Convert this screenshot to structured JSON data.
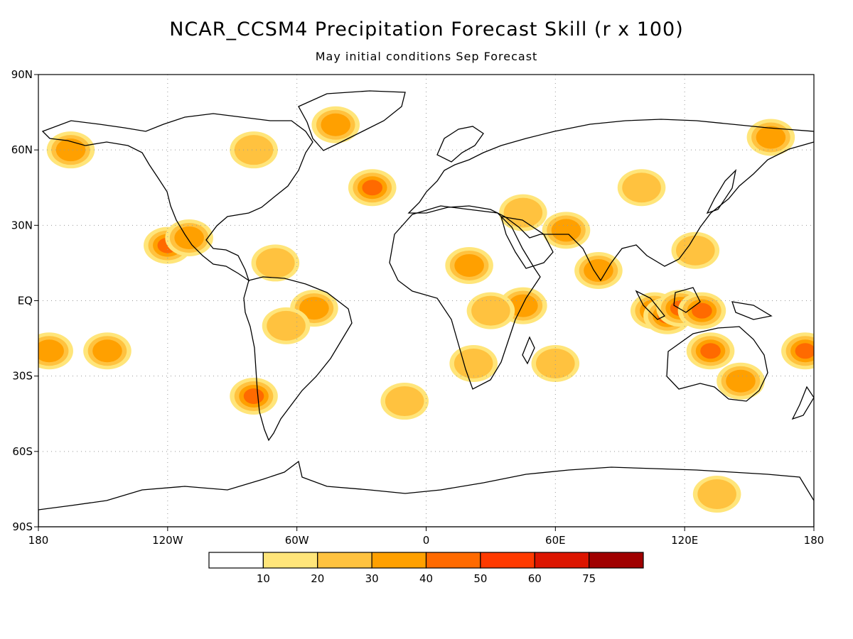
{
  "title": "NCAR_CCSM4 Precipitation Forecast Skill (r x 100)",
  "subtitle": "May initial conditions  Sep Forecast",
  "axes": {
    "lat_labels": [
      "90N",
      "60N",
      "30N",
      "EQ",
      "30S",
      "60S",
      "90S"
    ],
    "lat_values": [
      90,
      60,
      30,
      0,
      -30,
      -60,
      -90
    ],
    "lon_labels": [
      "180",
      "120W",
      "60W",
      "0",
      "60E",
      "120E",
      "180"
    ],
    "lon_values": [
      -180,
      -120,
      -60,
      0,
      60,
      120,
      180
    ],
    "lon_range": [
      -180,
      180
    ],
    "lat_range": [
      -90,
      90
    ],
    "grid": true
  },
  "colorbar": {
    "labels": [
      "10",
      "20",
      "30",
      "40",
      "50",
      "60",
      "75"
    ],
    "thresholds": [
      10,
      20,
      30,
      40,
      50,
      60,
      75
    ],
    "colors": [
      "#ffffff",
      "#ffe57a",
      "#ffc23f",
      "#ffa000",
      "#ff6a00",
      "#ff3a00",
      "#dc1500",
      "#a00000"
    ]
  },
  "skill_regions": [
    {
      "lon": 106,
      "lat": -4,
      "level": 6
    },
    {
      "lon": 112,
      "lat": -6,
      "level": 5
    },
    {
      "lon": 118,
      "lat": -3,
      "level": 4
    },
    {
      "lon": 128,
      "lat": -4,
      "level": 4
    },
    {
      "lon": 132,
      "lat": -20,
      "level": 4
    },
    {
      "lon": 146,
      "lat": -32,
      "level": 3
    },
    {
      "lon": 176,
      "lat": -20,
      "level": 4
    },
    {
      "lon": 80,
      "lat": 12,
      "level": 3
    },
    {
      "lon": 65,
      "lat": 28,
      "level": 3
    },
    {
      "lon": 45,
      "lat": -2,
      "level": 3
    },
    {
      "lon": 20,
      "lat": 14,
      "level": 3
    },
    {
      "lon": 30,
      "lat": -4,
      "level": 2
    },
    {
      "lon": 22,
      "lat": -25,
      "level": 2
    },
    {
      "lon": -52,
      "lat": -3,
      "level": 3
    },
    {
      "lon": -70,
      "lat": 15,
      "level": 2
    },
    {
      "lon": -65,
      "lat": -10,
      "level": 2
    },
    {
      "lon": -80,
      "lat": -38,
      "level": 4
    },
    {
      "lon": -120,
      "lat": 22,
      "level": 4
    },
    {
      "lon": -175,
      "lat": -20,
      "level": 3
    },
    {
      "lon": -148,
      "lat": -20,
      "level": 3
    },
    {
      "lon": -42,
      "lat": 70,
      "level": 3
    },
    {
      "lon": -25,
      "lat": 45,
      "level": 4
    },
    {
      "lon": -110,
      "lat": 25,
      "level": 3
    },
    {
      "lon": -80,
      "lat": 60,
      "level": 2
    },
    {
      "lon": 45,
      "lat": 35,
      "level": 2
    },
    {
      "lon": 100,
      "lat": 45,
      "level": 2
    },
    {
      "lon": 160,
      "lat": 65,
      "level": 3
    },
    {
      "lon": -165,
      "lat": 60,
      "level": 3
    },
    {
      "lon": 135,
      "lat": -77,
      "level": 2
    },
    {
      "lon": -10,
      "lat": -40,
      "level": 2
    },
    {
      "lon": 60,
      "lat": -25,
      "level": 2
    },
    {
      "lon": 125,
      "lat": 20,
      "level": 2
    }
  ]
}
